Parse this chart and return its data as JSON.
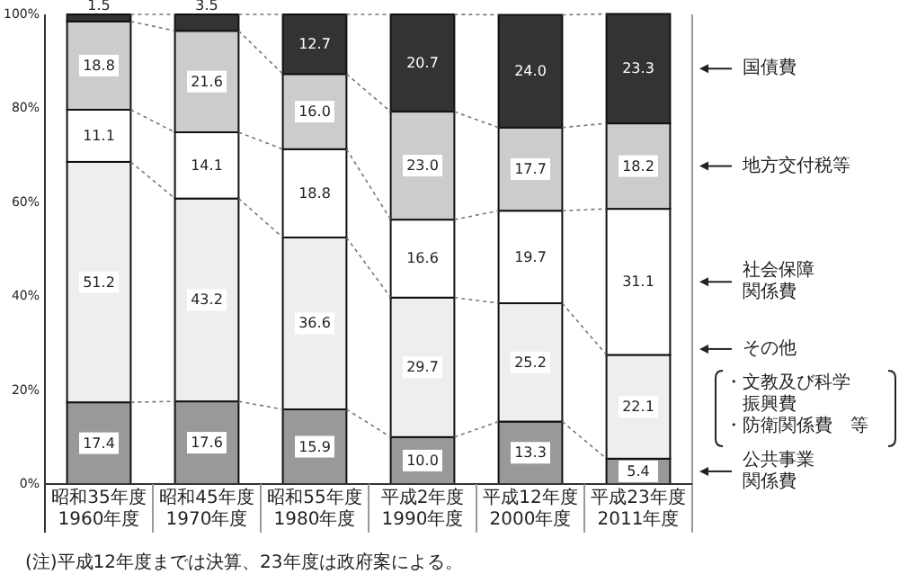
{
  "chart_data": {
    "type": "bar",
    "stacked": true,
    "legend": "right",
    "grid": false,
    "categories": [
      "昭和35年度\n1960年度",
      "昭和45年度\n1970年度",
      "昭和55年度\n1980年度",
      "平成2年度\n1990年度",
      "平成12年度\n2000年度",
      "平成23年度\n2011年度"
    ],
    "ylim": [
      0,
      100
    ],
    "yticks": [
      {
        "value": 0,
        "label": "0%"
      },
      {
        "value": 20,
        "label": "20%"
      },
      {
        "value": 40,
        "label": "40%"
      },
      {
        "value": 60,
        "label": "60%"
      },
      {
        "value": 80,
        "label": "80%"
      },
      {
        "value": 100,
        "label": "100%"
      }
    ],
    "series": [
      {
        "name": "公共事業関係費",
        "color": "#999999",
        "values": [
          17.4,
          17.6,
          15.9,
          10.0,
          13.3,
          5.4
        ],
        "value_labels": [
          "17.4",
          "17.6",
          "15.9",
          "10.0",
          "13.3",
          "5.4"
        ]
      },
      {
        "name": "その他",
        "color": "#eeeeee",
        "values": [
          51.2,
          43.2,
          36.6,
          29.7,
          25.2,
          22.1
        ],
        "value_labels": [
          "51.2",
          "43.2",
          "36.6",
          "29.7",
          "25.2",
          "22.1"
        ]
      },
      {
        "name": "社会保障関係費",
        "color": "#ffffff",
        "values": [
          11.1,
          14.1,
          18.8,
          16.6,
          19.7,
          31.1
        ],
        "value_labels": [
          "11.1",
          "14.1",
          "18.8",
          "16.6",
          "19.7",
          "31.1"
        ]
      },
      {
        "name": "地方交付税等",
        "color": "#cccccc",
        "values": [
          18.8,
          21.6,
          16.0,
          23.0,
          17.7,
          18.2
        ],
        "value_labels": [
          "18.8",
          "21.6",
          "16.0",
          "23.0",
          "17.7",
          "18.2"
        ]
      },
      {
        "name": "国債費",
        "color": "#333333",
        "values": [
          1.5,
          3.5,
          12.7,
          20.7,
          24.0,
          23.3
        ],
        "value_labels": [
          "1.5",
          "3.5",
          "12.7",
          "20.7",
          "24.0",
          "23.3"
        ]
      }
    ],
    "annotations": [
      "・文教及び科学振興費・防衛関係費　等",
      "(注)平成12年度までは決算、23年度は政府案による。"
    ]
  }
}
